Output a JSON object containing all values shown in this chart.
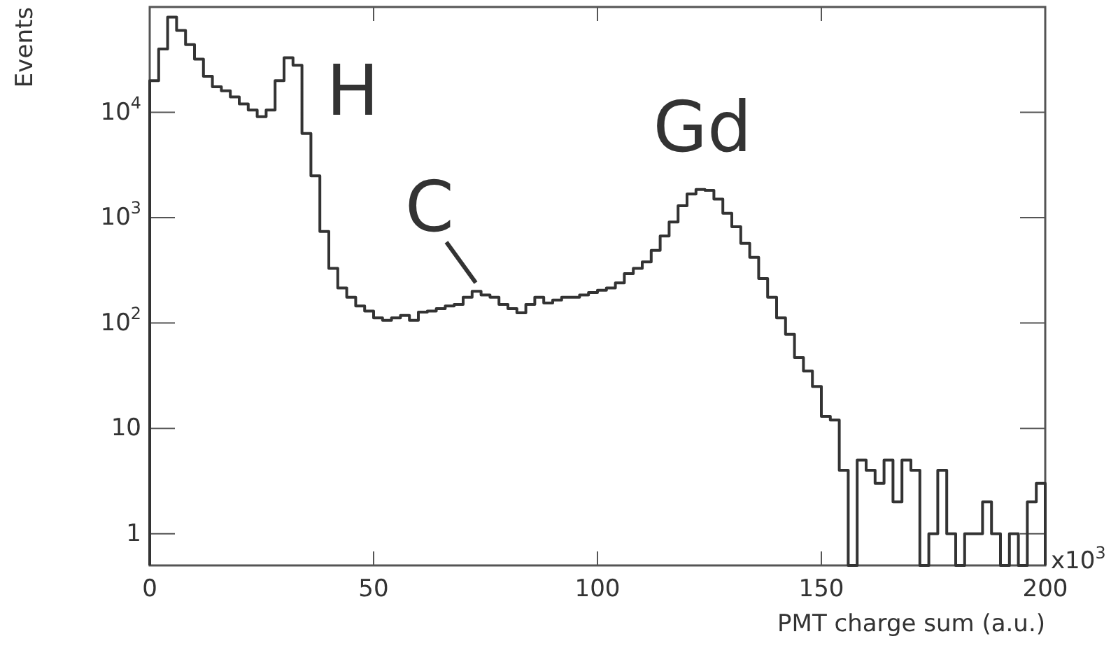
{
  "chart_data": {
    "type": "histogram",
    "xlabel": "PMT charge sum (a.u.)",
    "ylabel": "Events",
    "color": "#333333",
    "log": "y",
    "bins": [
      0,
      2,
      4,
      6,
      8,
      10,
      12,
      14,
      16,
      18,
      20,
      22,
      24,
      26,
      28,
      30,
      32,
      34,
      36,
      38,
      40,
      42,
      44,
      46,
      48,
      50,
      52,
      54,
      56,
      58,
      60,
      62,
      64,
      66,
      68,
      70,
      72,
      74,
      76,
      78,
      80,
      82,
      84,
      86,
      88,
      90,
      92,
      94,
      96,
      98,
      100,
      102,
      104,
      106,
      108,
      110,
      112,
      114,
      116,
      118,
      120,
      122,
      124,
      126,
      128,
      130,
      132,
      134,
      136,
      138,
      140,
      142,
      144,
      146,
      148,
      150,
      152,
      154,
      156,
      158,
      160,
      162,
      164,
      166,
      168,
      170,
      172,
      174,
      176,
      178,
      180,
      182,
      184,
      186,
      188,
      190,
      192,
      194,
      196,
      198,
      200
    ],
    "values": [
      20000,
      40000,
      80000,
      60000,
      44000,
      32000,
      22000,
      17500,
      16000,
      14000,
      12000,
      10500,
      9100,
      10500,
      20000,
      33000,
      28000,
      6300,
      2500,
      740,
      330,
      215,
      176,
      145,
      130,
      112,
      106,
      112,
      118,
      106,
      127,
      130,
      137,
      145,
      150,
      176,
      200,
      185,
      176,
      150,
      137,
      125,
      150,
      176,
      155,
      165,
      176,
      176,
      185,
      195,
      205,
      215,
      240,
      295,
      330,
      380,
      490,
      670,
      910,
      1300,
      1680,
      1850,
      1820,
      1500,
      1100,
      820,
      570,
      420,
      265,
      176,
      112,
      78,
      47,
      35,
      25,
      13,
      12,
      4,
      null,
      5,
      4,
      3,
      5,
      2,
      5,
      4,
      null,
      1,
      4,
      1,
      null,
      1,
      1,
      2,
      1,
      null,
      1,
      null,
      2,
      3
    ],
    "xlim": [
      0,
      200
    ],
    "xticks": [
      0,
      50,
      100,
      150,
      200
    ],
    "ylim": [
      0.5,
      100000
    ],
    "yticks": [
      1,
      10,
      {
        "value": 100,
        "label": "10$^{2}$"
      },
      {
        "value": 1000,
        "label": "10$^{3}$"
      },
      {
        "value": 10000,
        "label": "10$^{4}$"
      }
    ],
    "annotations": [
      "H",
      "C",
      "Gd",
      "x10$^{3}$"
    ]
  }
}
